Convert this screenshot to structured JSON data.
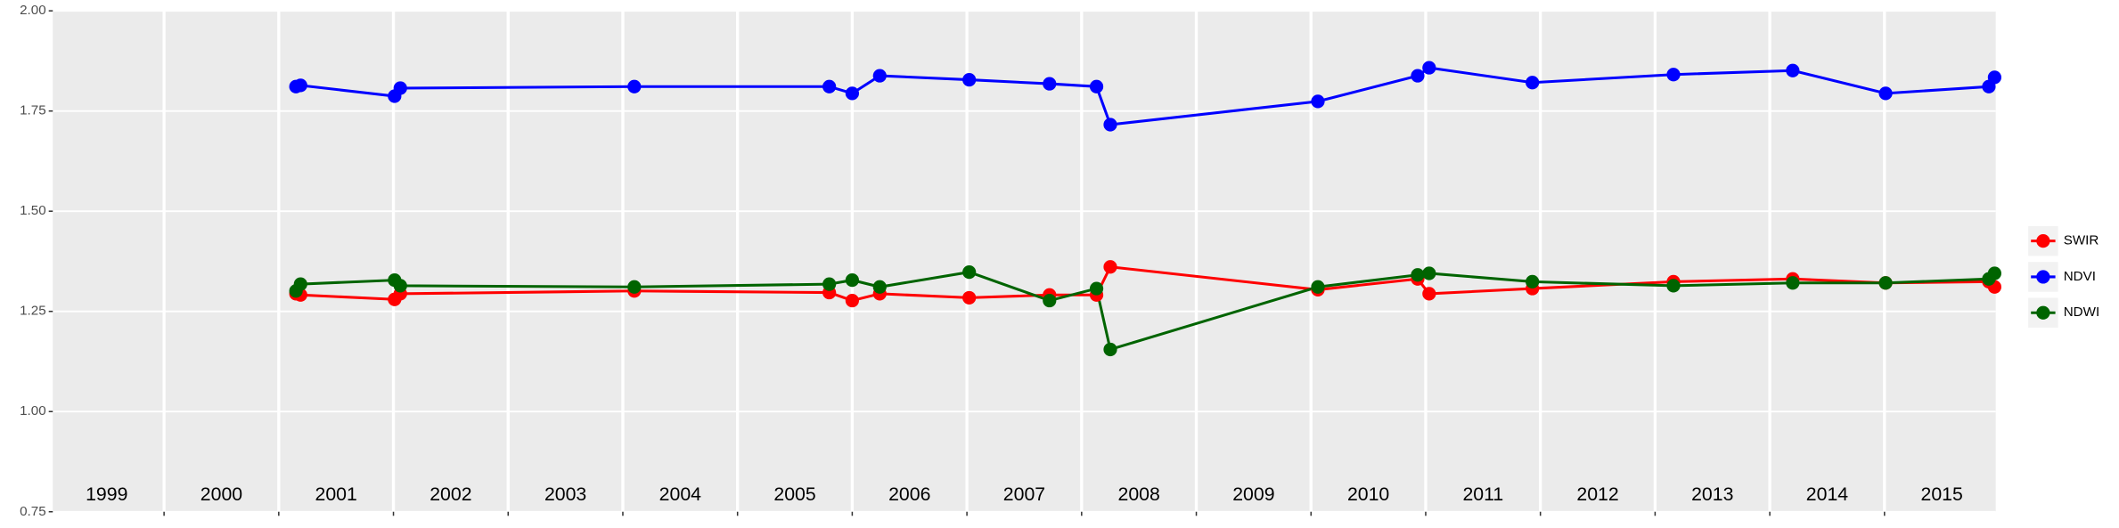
{
  "chart_data": {
    "type": "line",
    "xlim": [
      1999.03,
      2015.97
    ],
    "xticks": [
      2000,
      2001,
      2002,
      2003,
      2004,
      2005,
      2006,
      2007,
      2008,
      2009,
      2010,
      2011,
      2012,
      2013,
      2014,
      2015
    ],
    "year_labels": [
      "1999",
      "2000",
      "2001",
      "2002",
      "2003",
      "2004",
      "2005",
      "2006",
      "2007",
      "2008",
      "2009",
      "2010",
      "2011",
      "2012",
      "2013",
      "2014",
      "2015"
    ],
    "ylim": [
      0.75,
      2.0
    ],
    "yticks": [
      {
        "value": 0.75,
        "label": "0.75"
      },
      {
        "value": 1.0,
        "label": "1.00"
      },
      {
        "value": 1.25,
        "label": "1.25"
      },
      {
        "value": 1.5,
        "label": "1.50"
      },
      {
        "value": 1.75,
        "label": "1.75"
      },
      {
        "value": 2.0,
        "label": "2.00"
      }
    ],
    "grid": true,
    "legend": "right",
    "x": [
      2001.15,
      2001.19,
      2002.01,
      2002.06,
      2004.1,
      2005.8,
      2006.0,
      2006.24,
      2007.02,
      2007.72,
      2008.13,
      2008.25,
      2010.06,
      2010.93,
      2011.03,
      2011.93,
      2013.16,
      2014.2,
      2015.01,
      2015.91,
      2015.96
    ],
    "series": [
      {
        "name": "SWIR",
        "color": "#ff0000",
        "values": [
          1.294,
          1.291,
          1.28,
          1.294,
          1.301,
          1.297,
          1.277,
          1.294,
          1.284,
          1.291,
          1.291,
          1.361,
          1.304,
          1.331,
          1.294,
          1.307,
          1.324,
          1.331,
          1.321,
          1.324,
          1.311
        ]
      },
      {
        "name": "NDVI",
        "color": "#0000ff",
        "values": [
          1.811,
          1.814,
          1.787,
          1.807,
          1.811,
          1.811,
          1.794,
          1.838,
          1.828,
          1.818,
          1.811,
          1.716,
          1.774,
          1.838,
          1.858,
          1.821,
          1.841,
          1.851,
          1.794,
          1.811,
          1.834
        ]
      },
      {
        "name": "NDWI",
        "color": "#006400",
        "values": [
          1.301,
          1.318,
          1.328,
          1.314,
          1.311,
          1.318,
          1.328,
          1.311,
          1.348,
          1.277,
          1.307,
          1.155,
          1.311,
          1.341,
          1.345,
          1.324,
          1.314,
          1.321,
          1.321,
          1.331,
          1.345
        ]
      }
    ]
  }
}
